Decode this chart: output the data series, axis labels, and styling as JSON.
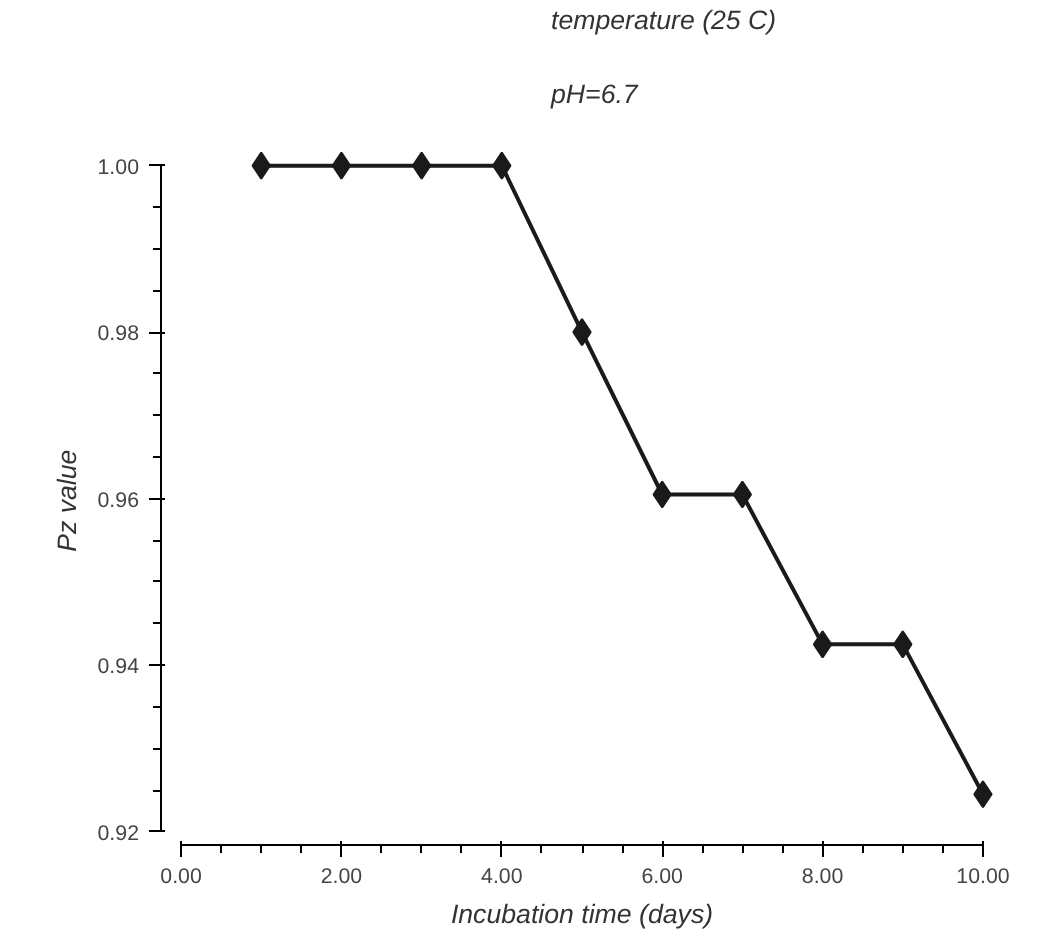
{
  "chart_data": {
    "type": "line",
    "xlabel": "Incubation time (days)",
    "ylabel": "Pz  value",
    "annotations": [
      "temperature (25 C)",
      "pH=6.7"
    ],
    "x": [
      1,
      2,
      3,
      4,
      5,
      6,
      7,
      8,
      9,
      10
    ],
    "series": [
      {
        "color": "#1a1a1a",
        "values": [
          1.0,
          1.0,
          1.0,
          1.0,
          0.98,
          0.9605,
          0.9605,
          0.9425,
          0.9425,
          0.9245
        ]
      }
    ],
    "xlim": [
      0,
      10
    ],
    "ylim": [
      0.92,
      1.0
    ],
    "xticks": [
      {
        "value": 0,
        "label": "0.00"
      },
      {
        "value": 2,
        "label": "2.00"
      },
      {
        "value": 4,
        "label": "4.00"
      },
      {
        "value": 6,
        "label": "6.00"
      },
      {
        "value": 8,
        "label": "8.00"
      },
      {
        "value": 10,
        "label": "10.00"
      }
    ],
    "yticks": [
      {
        "value": 0.92,
        "label": "0.92"
      },
      {
        "value": 0.94,
        "label": "0.94"
      },
      {
        "value": 0.96,
        "label": "0.96"
      },
      {
        "value": 0.98,
        "label": "0.98"
      },
      {
        "value": 1.0,
        "label": "1.00"
      }
    ],
    "grid": false,
    "marker": "diamond",
    "line_style": "solid"
  }
}
